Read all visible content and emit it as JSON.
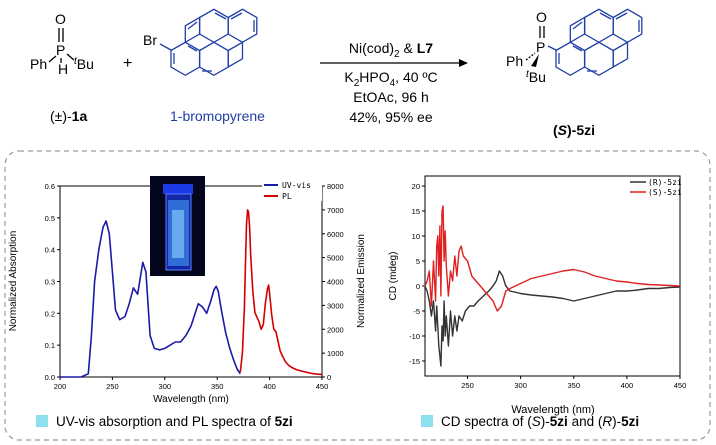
{
  "colors": {
    "blue": "#1a1aa8",
    "red": "#d40000",
    "gray": "#333333",
    "scheme_blue": "#1f3ea8",
    "legend_square": "#8fe0ee"
  },
  "scheme": {
    "reactant1": {
      "P": "P",
      "O": "O",
      "Ph": "Ph",
      "H": "H",
      "tBu_prefix": "t",
      "tBu_main": "Bu",
      "label_prefix": "(±)-",
      "label_bold": "1a"
    },
    "plus": "+",
    "reactant2": {
      "Br": "Br",
      "name": "1-bromopyrene"
    },
    "conditions": {
      "catalyst_a": "Ni(cod)",
      "catalyst_sub": "2",
      "catalyst_b": " & ",
      "ligand": "L7",
      "base_a": "K",
      "base_sub1": "2",
      "base_b": "HPO",
      "base_sub2": "4",
      "base_c": ", 40 ºC",
      "solvent_time": "EtOAc, 96 h",
      "result": "42%, 95% ee"
    },
    "product": {
      "P": "P",
      "O": "O",
      "Ph": "Ph",
      "tBu_prefix": "t",
      "tBu_main": "Bu",
      "label_open": "(",
      "label_S": "S",
      "label_close": ")-",
      "label_bold": "5zi"
    }
  },
  "caption_left": {
    "text": "UV-vis absorption and PL spectra of ",
    "bold": "5zi"
  },
  "caption_right": {
    "pre": "CD spectra of (",
    "S": "S",
    "mid": ")-",
    "bold1": "5zi",
    "and": " and (",
    "R": "R",
    "mid2": ")-",
    "bold2": "5zi"
  },
  "chart_data": [
    {
      "type": "line",
      "xlabel": "Wavelength (nm)",
      "ylabel": "Normalized Absorption",
      "y2label": "Normalized Emission",
      "xlim": [
        200,
        450
      ],
      "ylim": [
        0,
        0.6
      ],
      "y2lim": [
        0,
        8000
      ],
      "xticks": [
        "200",
        "250",
        "300",
        "350",
        "400",
        "450"
      ],
      "yticks": [
        "0.0",
        "0.1",
        "0.2",
        "0.3",
        "0.4",
        "0.5",
        "0.6"
      ],
      "y2ticks": [
        "0",
        "1000",
        "2000",
        "3000",
        "4000",
        "5000",
        "6000",
        "7000",
        "8000"
      ],
      "legend": "top-right",
      "series": [
        {
          "name": "UV-vis",
          "axis": "left",
          "color": "#1a1aa8",
          "x": [
            200,
            220,
            227,
            230,
            233,
            237,
            241,
            244,
            247,
            250,
            253,
            257,
            262,
            266,
            270,
            274,
            277,
            279,
            282,
            286,
            290,
            295,
            300,
            305,
            310,
            315,
            320,
            325,
            328,
            332,
            336,
            340,
            344,
            347,
            349,
            351,
            354,
            358,
            362,
            366,
            369,
            372
          ],
          "y": [
            0.0,
            0.0,
            0.01,
            0.13,
            0.3,
            0.4,
            0.47,
            0.49,
            0.45,
            0.33,
            0.21,
            0.18,
            0.19,
            0.23,
            0.28,
            0.26,
            0.32,
            0.36,
            0.33,
            0.13,
            0.09,
            0.085,
            0.09,
            0.1,
            0.11,
            0.11,
            0.13,
            0.16,
            0.19,
            0.23,
            0.22,
            0.2,
            0.24,
            0.275,
            0.285,
            0.27,
            0.21,
            0.14,
            0.09,
            0.05,
            0.025,
            0.01
          ]
        },
        {
          "name": "PL",
          "axis": "right",
          "color": "#d40000",
          "x": [
            372,
            374,
            376,
            377,
            378,
            379,
            380,
            381,
            382,
            384,
            386,
            388,
            390,
            392,
            394,
            396,
            398,
            399,
            400,
            402,
            404,
            406,
            408,
            410,
            412,
            415,
            418,
            421,
            425,
            430,
            435,
            440,
            445,
            450
          ],
          "y": [
            200,
            1000,
            2900,
            4800,
            6400,
            7000,
            6900,
            6200,
            5100,
            3600,
            2700,
            2500,
            2300,
            2000,
            2200,
            3100,
            3700,
            3850,
            3500,
            2600,
            2000,
            1900,
            1500,
            1100,
            900,
            650,
            500,
            400,
            320,
            250,
            200,
            150,
            120,
            100
          ]
        }
      ]
    },
    {
      "type": "line",
      "xlabel": "Wavelength (nm)",
      "ylabel": "CD (mdeg)",
      "xlim": [
        210,
        450
      ],
      "ylim": [
        -18,
        22
      ],
      "xticks": [
        "250",
        "300",
        "350",
        "400",
        "450"
      ],
      "yticks": [
        "-15",
        "-10",
        "-5",
        "0",
        "5",
        "10",
        "15",
        "20"
      ],
      "legend": "top-right",
      "series": [
        {
          "name": "(R)-5zi",
          "color": "#333333",
          "x": [
            210,
            212,
            214,
            216,
            218,
            220,
            221,
            222,
            223,
            224,
            225,
            226,
            227,
            228,
            229,
            230,
            232,
            234,
            236,
            238,
            240,
            242,
            245,
            248,
            252,
            256,
            260,
            265,
            270,
            274,
            277,
            280,
            283,
            286,
            290,
            300,
            310,
            320,
            330,
            340,
            350,
            360,
            370,
            380,
            390,
            400,
            410,
            420,
            430,
            440,
            450
          ],
          "y": [
            0,
            -1,
            -3,
            -6,
            -3,
            -9,
            -4,
            -8,
            -12,
            -14,
            -16,
            -8,
            -11,
            -3,
            -10,
            -6,
            -12,
            -5,
            -10,
            -6,
            -9,
            -6,
            -7,
            -5,
            -4,
            -4,
            -3,
            -2,
            -1,
            0,
            1,
            3,
            2,
            0,
            -1,
            -1.5,
            -1.8,
            -2,
            -2.2,
            -2.5,
            -3,
            -2.5,
            -2,
            -1.5,
            -1,
            -1,
            -0.8,
            -0.5,
            -0.5,
            -0.3,
            -0.2
          ]
        },
        {
          "name": "(S)-5zi",
          "color": "#e02020",
          "x": [
            210,
            212,
            214,
            216,
            218,
            220,
            221,
            222,
            223,
            224,
            225,
            226,
            227,
            228,
            229,
            230,
            232,
            234,
            236,
            238,
            240,
            242,
            244,
            246,
            250,
            254,
            258,
            262,
            266,
            270,
            274,
            278,
            282,
            286,
            290,
            300,
            310,
            320,
            330,
            340,
            350,
            360,
            370,
            380,
            390,
            400,
            410,
            420,
            430,
            440,
            450
          ],
          "y": [
            0,
            1,
            3,
            -4,
            5,
            -3,
            8,
            10,
            2,
            12,
            -2,
            15,
            16,
            5,
            11,
            4,
            -2,
            3,
            1,
            6,
            2,
            7,
            8,
            6,
            5,
            2,
            1,
            0,
            -1,
            -2,
            -3,
            -5,
            -4,
            -1,
            -0.5,
            0.5,
            1.5,
            2,
            2.5,
            3,
            3.3,
            2.8,
            2,
            1.5,
            1,
            0.8,
            0.5,
            0.3,
            0.2,
            0.1,
            0
          ]
        }
      ]
    }
  ]
}
